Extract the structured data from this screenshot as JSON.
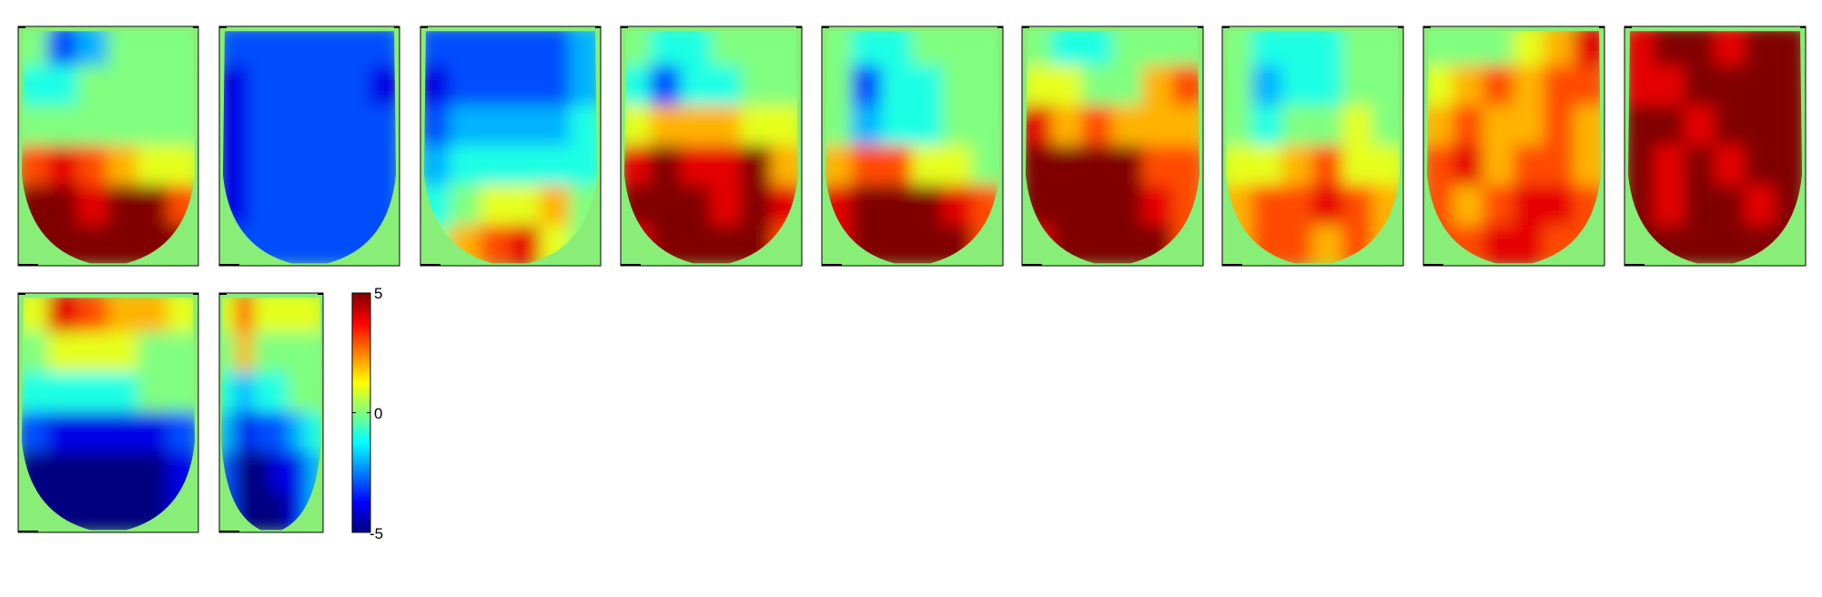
{
  "chart_data": {
    "type": "heatmap",
    "colormap": "jet",
    "clim": [
      -5,
      5
    ],
    "background_color": "#88ee77",
    "colorbar": {
      "ticks": [
        5,
        0,
        -5
      ],
      "tick_labels": [
        "5",
        "0",
        "-5"
      ]
    },
    "panels": [
      {
        "rows": [
          [
            0,
            -3,
            -2,
            0,
            0,
            0
          ],
          [
            -1,
            -1,
            0,
            0,
            0,
            0
          ],
          [
            0,
            0,
            0,
            0,
            0,
            0
          ],
          [
            3,
            4,
            3,
            2,
            1,
            1
          ],
          [
            5,
            6,
            4,
            6,
            5,
            3
          ],
          [
            6,
            7,
            6,
            7,
            6,
            5
          ]
        ]
      },
      {
        "rows": [
          [
            -3,
            -3,
            -3,
            -3,
            -3,
            -3
          ],
          [
            -4,
            -3,
            -3,
            -3,
            -3,
            -4
          ],
          [
            -4,
            -3,
            -3,
            -3,
            -3,
            -3
          ],
          [
            -4,
            -3,
            -3,
            -3,
            -3,
            -3
          ],
          [
            -4,
            -3,
            -3,
            -3,
            -3,
            -3
          ],
          [
            -3,
            -3,
            -3,
            -3,
            -3,
            -3
          ]
        ]
      },
      {
        "rows": [
          [
            -3,
            -3,
            -3,
            -3,
            -3,
            -2
          ],
          [
            -4,
            -3,
            -3,
            -3,
            -3,
            -2
          ],
          [
            -3,
            -2,
            -2,
            -2,
            -2,
            -1
          ],
          [
            -2,
            -1,
            -1,
            -1,
            -1,
            -1
          ],
          [
            -1,
            0,
            1,
            1,
            2,
            0
          ],
          [
            0,
            2,
            3,
            4,
            1,
            0
          ]
        ]
      },
      {
        "rows": [
          [
            0,
            -1,
            -1,
            0,
            0,
            0
          ],
          [
            -1,
            -3,
            -1,
            -1,
            0,
            0
          ],
          [
            1,
            2,
            2,
            2,
            1,
            1
          ],
          [
            4,
            5,
            4,
            4,
            5,
            2
          ],
          [
            5,
            6,
            5,
            4,
            6,
            4
          ],
          [
            4,
            6,
            6,
            5,
            5,
            3
          ]
        ]
      },
      {
        "rows": [
          [
            0,
            -1,
            -1,
            0,
            0,
            0
          ],
          [
            0,
            -3,
            -1,
            -1,
            0,
            0
          ],
          [
            0,
            -2,
            -1,
            -1,
            0,
            0
          ],
          [
            2,
            3,
            3,
            1,
            1,
            0
          ],
          [
            4,
            6,
            5,
            6,
            4,
            3
          ],
          [
            4,
            6,
            6,
            6,
            6,
            3
          ]
        ]
      },
      {
        "rows": [
          [
            0,
            -1,
            -1,
            0,
            0,
            0
          ],
          [
            1,
            1,
            0,
            0,
            2,
            3
          ],
          [
            4,
            2,
            3,
            2,
            2,
            2
          ],
          [
            5,
            5,
            6,
            6,
            3,
            3
          ],
          [
            5,
            6,
            6,
            6,
            4,
            3
          ],
          [
            4,
            5,
            6,
            6,
            6,
            3
          ]
        ]
      },
      {
        "rows": [
          [
            0,
            -1,
            -1,
            -1,
            0,
            0
          ],
          [
            0,
            -2,
            -1,
            -1,
            0,
            0
          ],
          [
            0,
            -1,
            0,
            0,
            1,
            0
          ],
          [
            1,
            1,
            2,
            3,
            1,
            1
          ],
          [
            2,
            3,
            3,
            4,
            3,
            2
          ],
          [
            2,
            3,
            3,
            2,
            3,
            2
          ]
        ]
      },
      {
        "rows": [
          [
            0,
            0,
            0,
            1,
            2,
            4
          ],
          [
            1,
            2,
            3,
            2,
            3,
            3
          ],
          [
            2,
            3,
            2,
            2,
            3,
            2
          ],
          [
            3,
            4,
            2,
            3,
            3,
            2
          ],
          [
            3,
            2,
            3,
            4,
            4,
            3
          ],
          [
            3,
            3,
            4,
            4,
            3,
            3
          ]
        ]
      },
      {
        "rows": [
          [
            4,
            5,
            5,
            4,
            5,
            5
          ],
          [
            4,
            4,
            5,
            6,
            6,
            6
          ],
          [
            5,
            5,
            4,
            6,
            6,
            6
          ],
          [
            5,
            4,
            5,
            4,
            5,
            5
          ],
          [
            5,
            4,
            5,
            5,
            4,
            5
          ],
          [
            5,
            5,
            5,
            5,
            5,
            5
          ]
        ]
      },
      {
        "rows": [
          [
            1,
            4,
            3,
            2,
            2,
            1
          ],
          [
            0,
            1,
            1,
            1,
            0,
            0
          ],
          [
            -1,
            -1,
            -1,
            -1,
            0,
            0
          ],
          [
            -3,
            -4,
            -4,
            -4,
            -4,
            -3
          ],
          [
            -5,
            -5,
            -5,
            -5,
            -5,
            -4
          ],
          [
            -5,
            -6,
            -6,
            -6,
            -5,
            -4
          ]
        ]
      },
      {
        "rows": [
          [
            1,
            3,
            1,
            1,
            1,
            1
          ],
          [
            0,
            2,
            0,
            0,
            0,
            0
          ],
          [
            -1,
            -2,
            -1,
            -1,
            0,
            0
          ],
          [
            -2,
            -4,
            -3,
            -3,
            -2,
            -1
          ],
          [
            -3,
            -5,
            -5,
            -4,
            -4,
            -2
          ],
          [
            -3,
            -5,
            -5,
            -5,
            -4,
            -2
          ]
        ]
      }
    ]
  }
}
